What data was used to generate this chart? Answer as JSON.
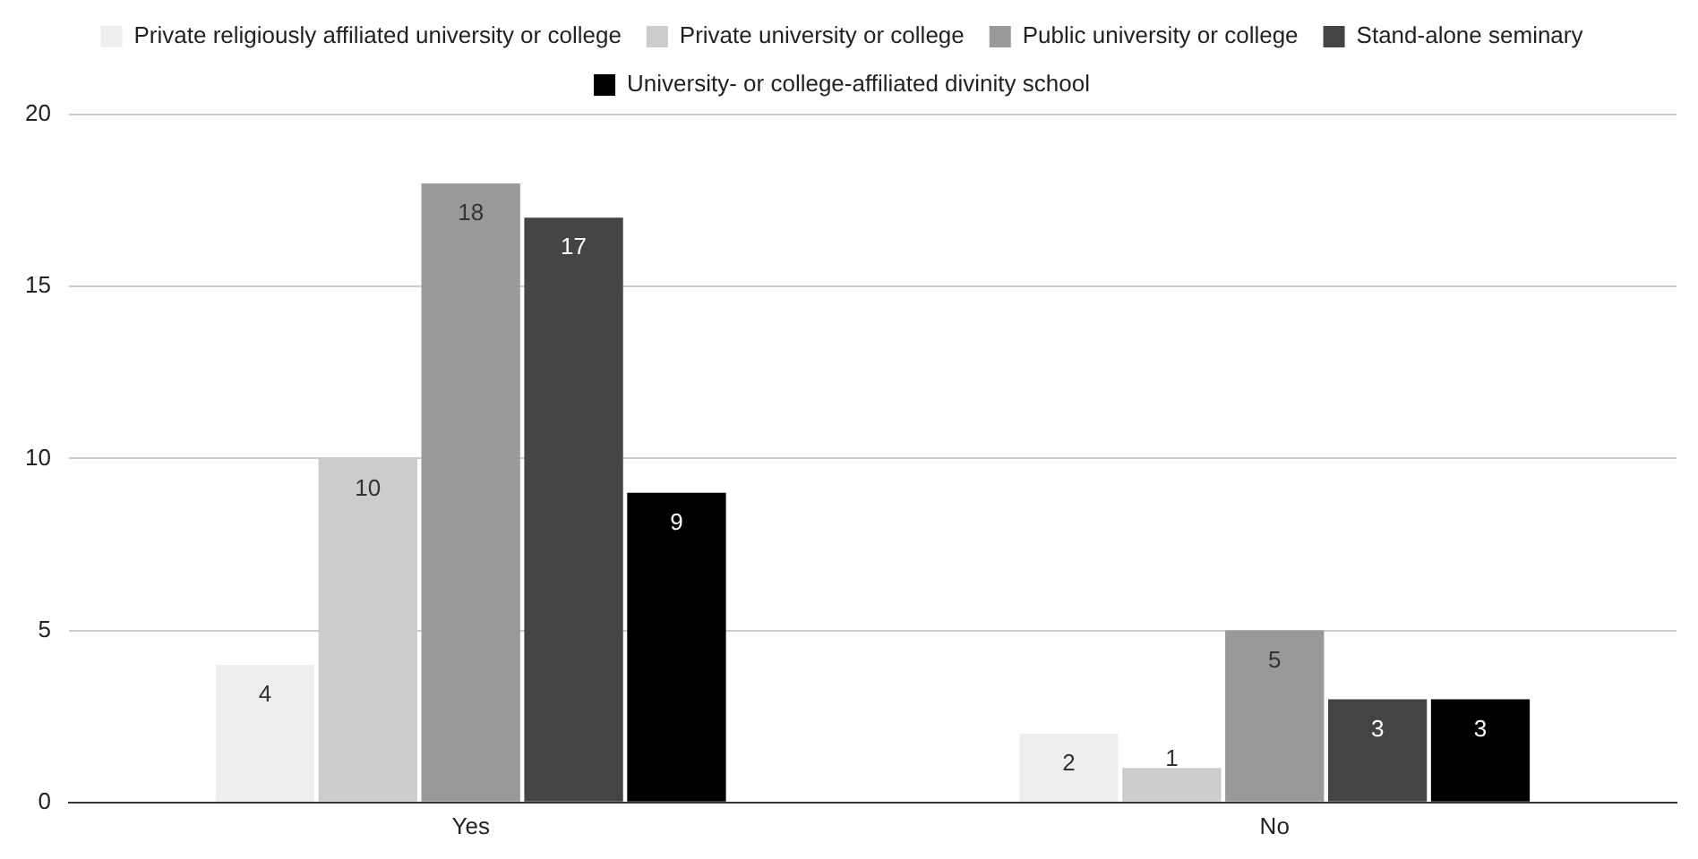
{
  "chart_data": {
    "type": "bar",
    "categories": [
      "Yes",
      "No"
    ],
    "series": [
      {
        "name": "Private religiously affiliated university or college",
        "color": "#eeeeee",
        "values": [
          4,
          2
        ]
      },
      {
        "name": "Private university or college",
        "color": "#cccccc",
        "values": [
          10,
          1
        ]
      },
      {
        "name": "Public university or college",
        "color": "#999999",
        "values": [
          18,
          5
        ]
      },
      {
        "name": "Stand-alone seminary",
        "color": "#444444",
        "values": [
          17,
          3
        ]
      },
      {
        "name": "University- or college-affiliated divinity school",
        "color": "#000000",
        "values": [
          9,
          3
        ]
      }
    ],
    "ylim": [
      0,
      20
    ],
    "yticks": [
      0,
      5,
      10,
      15,
      20
    ],
    "grid": "y",
    "legend": "top",
    "data_labels": true
  }
}
